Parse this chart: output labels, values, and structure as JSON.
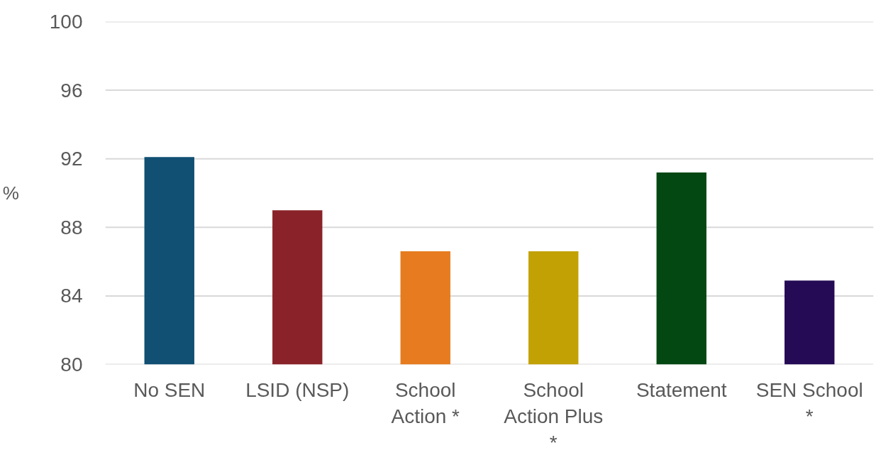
{
  "chart_data": {
    "type": "bar",
    "categories": [
      "No SEN",
      "LSID (NSP)",
      "School Action *",
      "School Action Plus *",
      "Statement",
      "SEN School *"
    ],
    "values": [
      92.1,
      89.0,
      86.6,
      86.6,
      91.2,
      84.9
    ],
    "colors": [
      "#114f73",
      "#8a2329",
      "#e67c1f",
      "#c2a104",
      "#034713",
      "#250a56"
    ],
    "ylabel": "%",
    "ylim": [
      80,
      100
    ],
    "yticks": [
      80,
      84,
      88,
      92,
      96,
      100
    ],
    "grid": "y"
  }
}
